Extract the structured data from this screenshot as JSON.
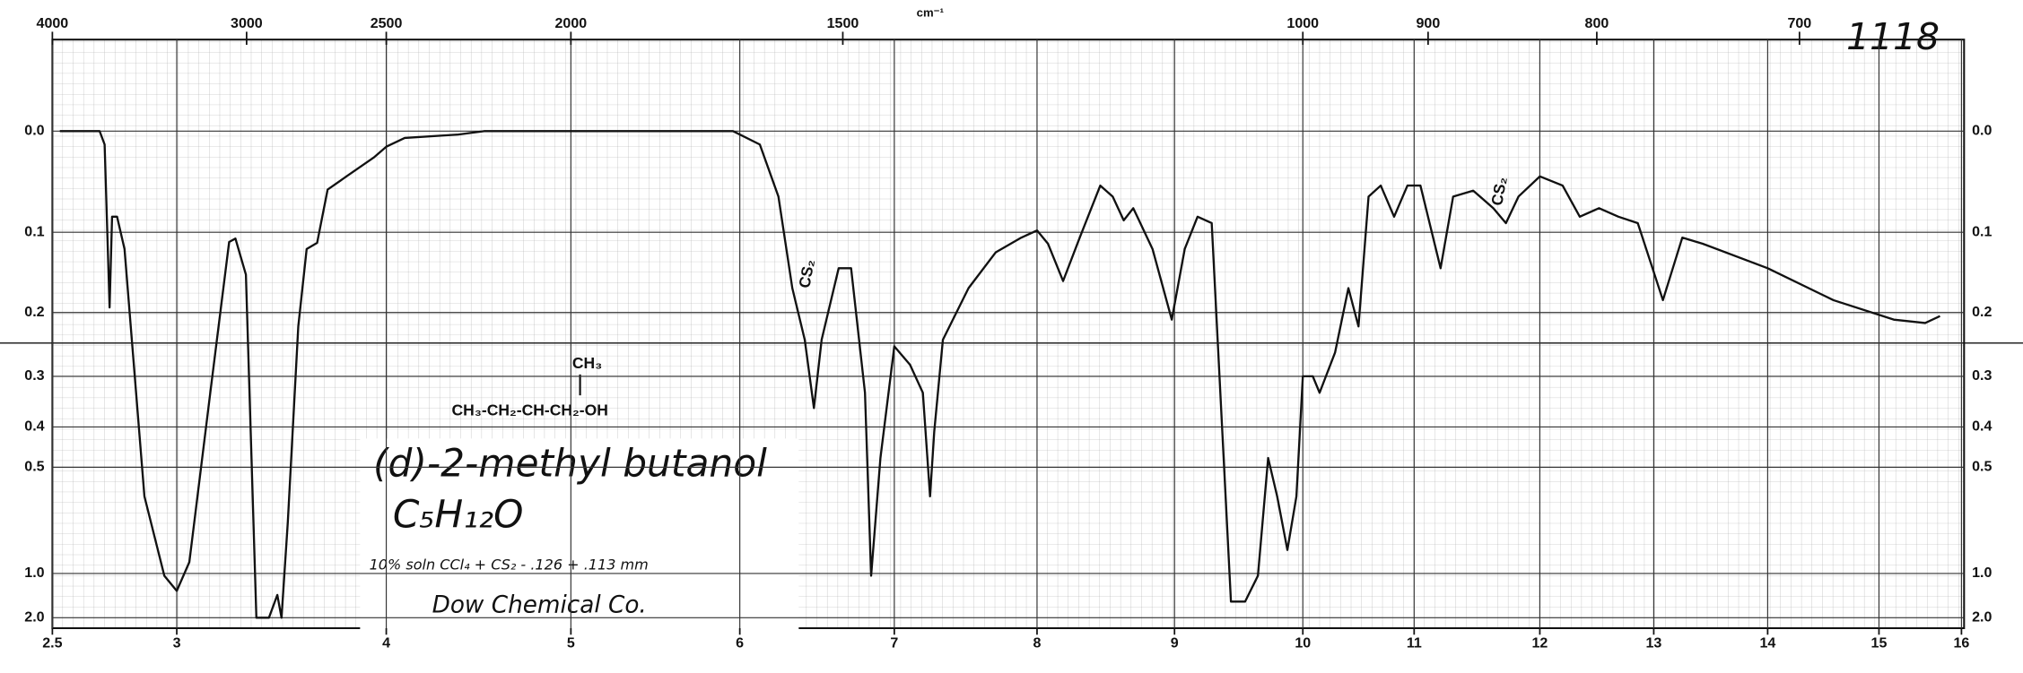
{
  "chart_data": {
    "type": "line",
    "title": "(d)-2-methyl butanol",
    "subtitle": "C₅H₁₂O",
    "annotations": [
      "10% soln CCl₄ + CS₂ - .126 + .113 mm",
      "Dow Chemical Co.",
      "CH₃",
      "CH₃-CH₂-CH-CH₂-OH",
      "CS₂",
      "CS₂",
      "1118"
    ],
    "x2label": "cm⁻¹",
    "x": [
      2.53,
      2.69,
      2.71,
      2.73,
      2.74,
      2.76,
      2.79,
      2.87,
      2.95,
      3.0,
      3.06,
      3.16,
      3.25,
      3.28,
      3.33,
      3.38,
      3.44,
      3.48,
      3.5,
      3.53,
      3.58,
      3.62,
      3.67,
      3.72,
      3.81,
      3.94,
      4.0,
      4.1,
      4.39,
      4.53,
      4.74,
      5.11,
      5.5,
      5.96,
      6.13,
      6.25,
      6.34,
      6.42,
      6.48,
      6.53,
      6.64,
      6.72,
      6.81,
      6.85,
      6.91,
      7.0,
      7.11,
      7.2,
      7.25,
      7.28,
      7.34,
      7.52,
      7.71,
      7.89,
      8.0,
      8.08,
      8.19,
      8.31,
      8.46,
      8.55,
      8.63,
      8.7,
      8.84,
      8.98,
      9.08,
      9.18,
      9.29,
      9.44,
      9.55,
      9.65,
      9.73,
      9.8,
      9.88,
      9.95,
      10.0,
      10.09,
      10.15,
      10.29,
      10.41,
      10.5,
      10.59,
      10.7,
      10.82,
      10.94,
      11.05,
      11.21,
      11.31,
      11.47,
      11.63,
      11.73,
      11.83,
      12.0,
      12.2,
      12.35,
      12.52,
      12.69,
      12.86,
      13.08,
      13.25,
      13.43,
      14.0,
      14.59,
      15.18,
      15.56,
      15.74
    ],
    "series": [
      {
        "name": "(d)-2-methyl butanol",
        "color": "#111111",
        "values": [
          0.0,
          0.0,
          0.012,
          0.193,
          0.083,
          0.083,
          0.119,
          0.59,
          1.02,
          1.19,
          0.91,
          0.33,
          0.111,
          0.107,
          0.15,
          2.0,
          2.0,
          1.25,
          2.0,
          0.69,
          0.22,
          0.119,
          0.112,
          0.055,
          0.042,
          0.024,
          0.014,
          0.006,
          0.003,
          0.0,
          0.0,
          0.0,
          0.0,
          0.0,
          0.012,
          0.062,
          0.167,
          0.24,
          0.36,
          0.24,
          0.142,
          0.142,
          0.33,
          1.02,
          0.475,
          0.25,
          0.28,
          0.33,
          0.59,
          0.41,
          0.24,
          0.167,
          0.123,
          0.106,
          0.098,
          0.113,
          0.158,
          0.106,
          0.051,
          0.062,
          0.087,
          0.074,
          0.119,
          0.21,
          0.119,
          0.083,
          0.09,
          1.37,
          1.37,
          1.02,
          0.475,
          0.59,
          0.83,
          0.59,
          0.3,
          0.3,
          0.33,
          0.26,
          0.167,
          0.22,
          0.062,
          0.051,
          0.083,
          0.051,
          0.051,
          0.142,
          0.062,
          0.056,
          0.074,
          0.09,
          0.062,
          0.042,
          0.051,
          0.083,
          0.074,
          0.083,
          0.09,
          0.183,
          0.106,
          0.113,
          0.142,
          0.183,
          0.21,
          0.215,
          0.205
        ]
      }
    ],
    "xlim": [
      2.5,
      16
    ],
    "xticks": [
      2.5,
      3,
      4,
      5,
      6,
      7,
      8,
      9,
      10,
      11,
      12,
      13,
      14,
      15,
      16
    ],
    "x2ticks": [
      4000,
      3000,
      2500,
      2000,
      1500,
      1000,
      900,
      800,
      700
    ],
    "ylim": [
      0,
      2
    ],
    "yscale": "transmittance-linear",
    "yticks": [
      {
        "value": 0,
        "label": "0.0"
      },
      0.1,
      0.2,
      0.3,
      0.4,
      0.5,
      {
        "value": 1,
        "label": "1.0"
      },
      {
        "value": 2,
        "label": "2.0"
      }
    ],
    "grid": true
  }
}
